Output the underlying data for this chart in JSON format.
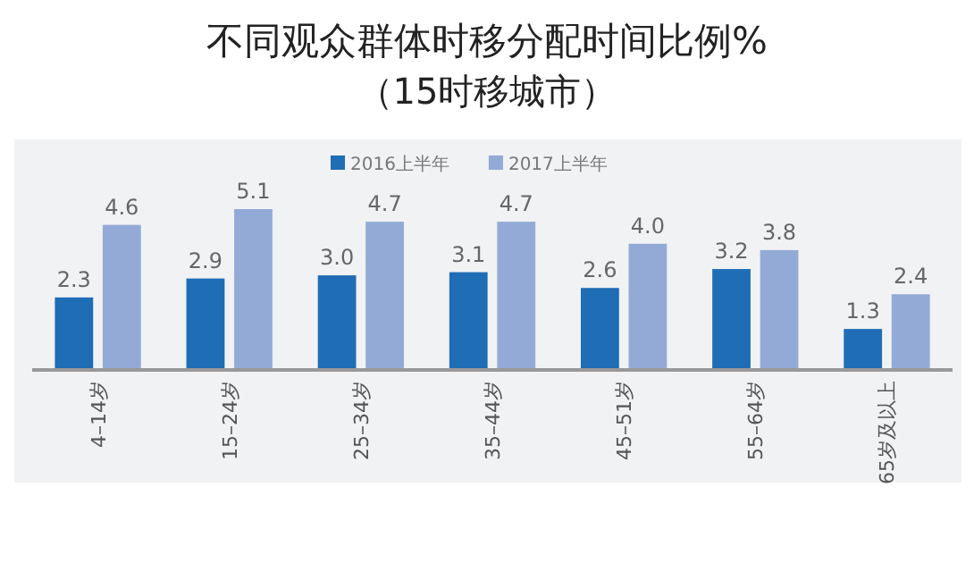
{
  "chart_data": {
    "type": "bar",
    "title": "不同观众群体时移分配时间比例%",
    "subtitle": "（15时移城市）",
    "categories": [
      "4–14岁",
      "15–24岁",
      "25–34岁",
      "35–44岁",
      "45–51岁",
      "55–64岁",
      "65岁及以上"
    ],
    "series": [
      {
        "name": "2016上半年",
        "color": "#1f6db5",
        "values": [
          2.3,
          2.9,
          3.0,
          3.1,
          2.6,
          3.2,
          1.3
        ],
        "value_labels": [
          "2.3",
          "2.9",
          "3.0",
          "3.1",
          "2.6",
          "3.2",
          "1.3"
        ]
      },
      {
        "name": "2017上半年",
        "color": "#93aad6",
        "values": [
          4.6,
          5.1,
          4.7,
          4.7,
          4.0,
          3.8,
          2.4
        ],
        "value_labels": [
          "4.6",
          "5.1",
          "4.7",
          "4.7",
          "4.0",
          "3.8",
          "2.4"
        ]
      }
    ],
    "legend": "top"
  }
}
